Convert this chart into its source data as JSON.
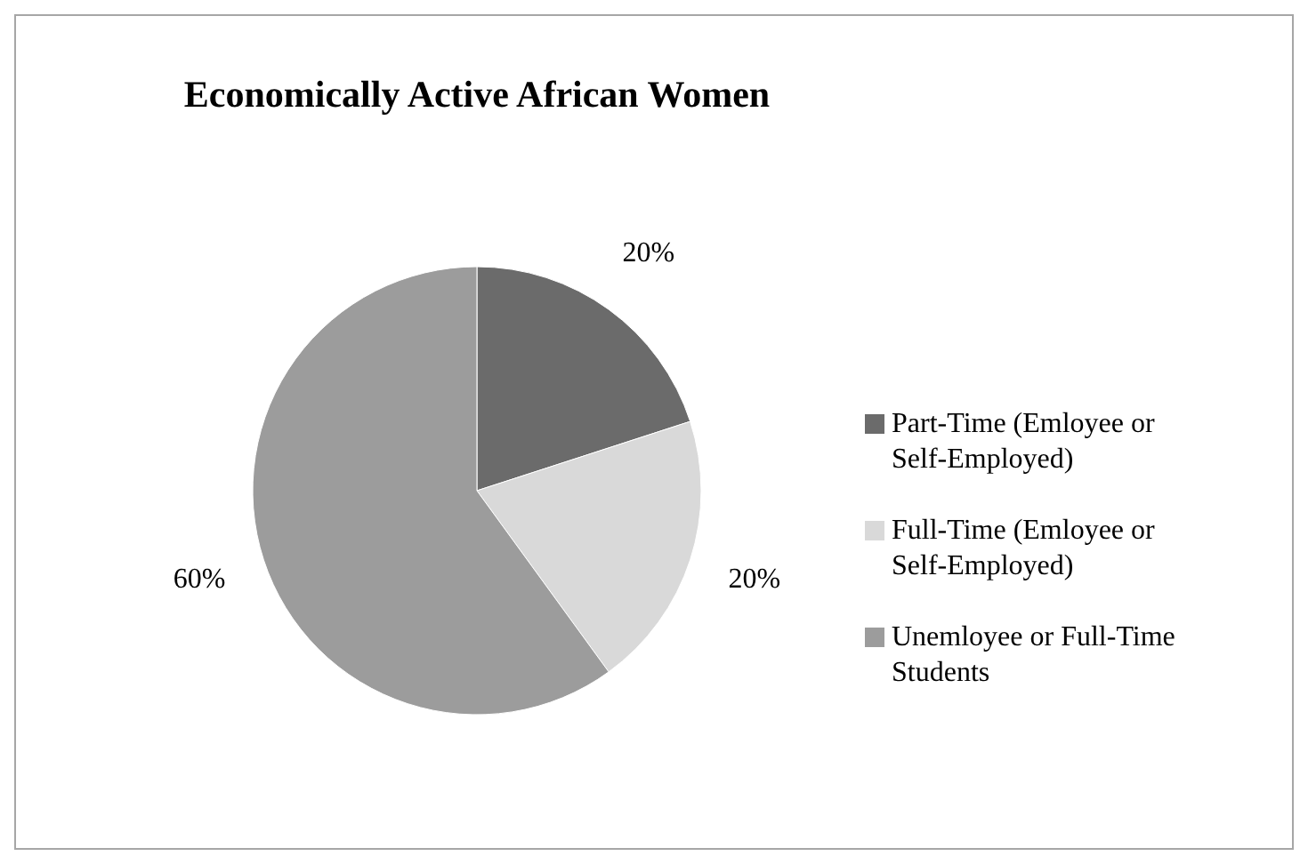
{
  "chart_data": {
    "type": "pie",
    "title": "Economically Active African Women",
    "categories": [
      "Part-Time (Emloyee or Self-Employed)",
      "Full-Time (Emloyee or Self-Employed)",
      "Unemloyee or Full-Time Students"
    ],
    "values": [
      20,
      20,
      60
    ],
    "colors": [
      "#6b6b6b",
      "#d9d9d9",
      "#9c9c9c"
    ],
    "value_labels": [
      "20%",
      "20%",
      "60%"
    ],
    "legend": "right"
  }
}
